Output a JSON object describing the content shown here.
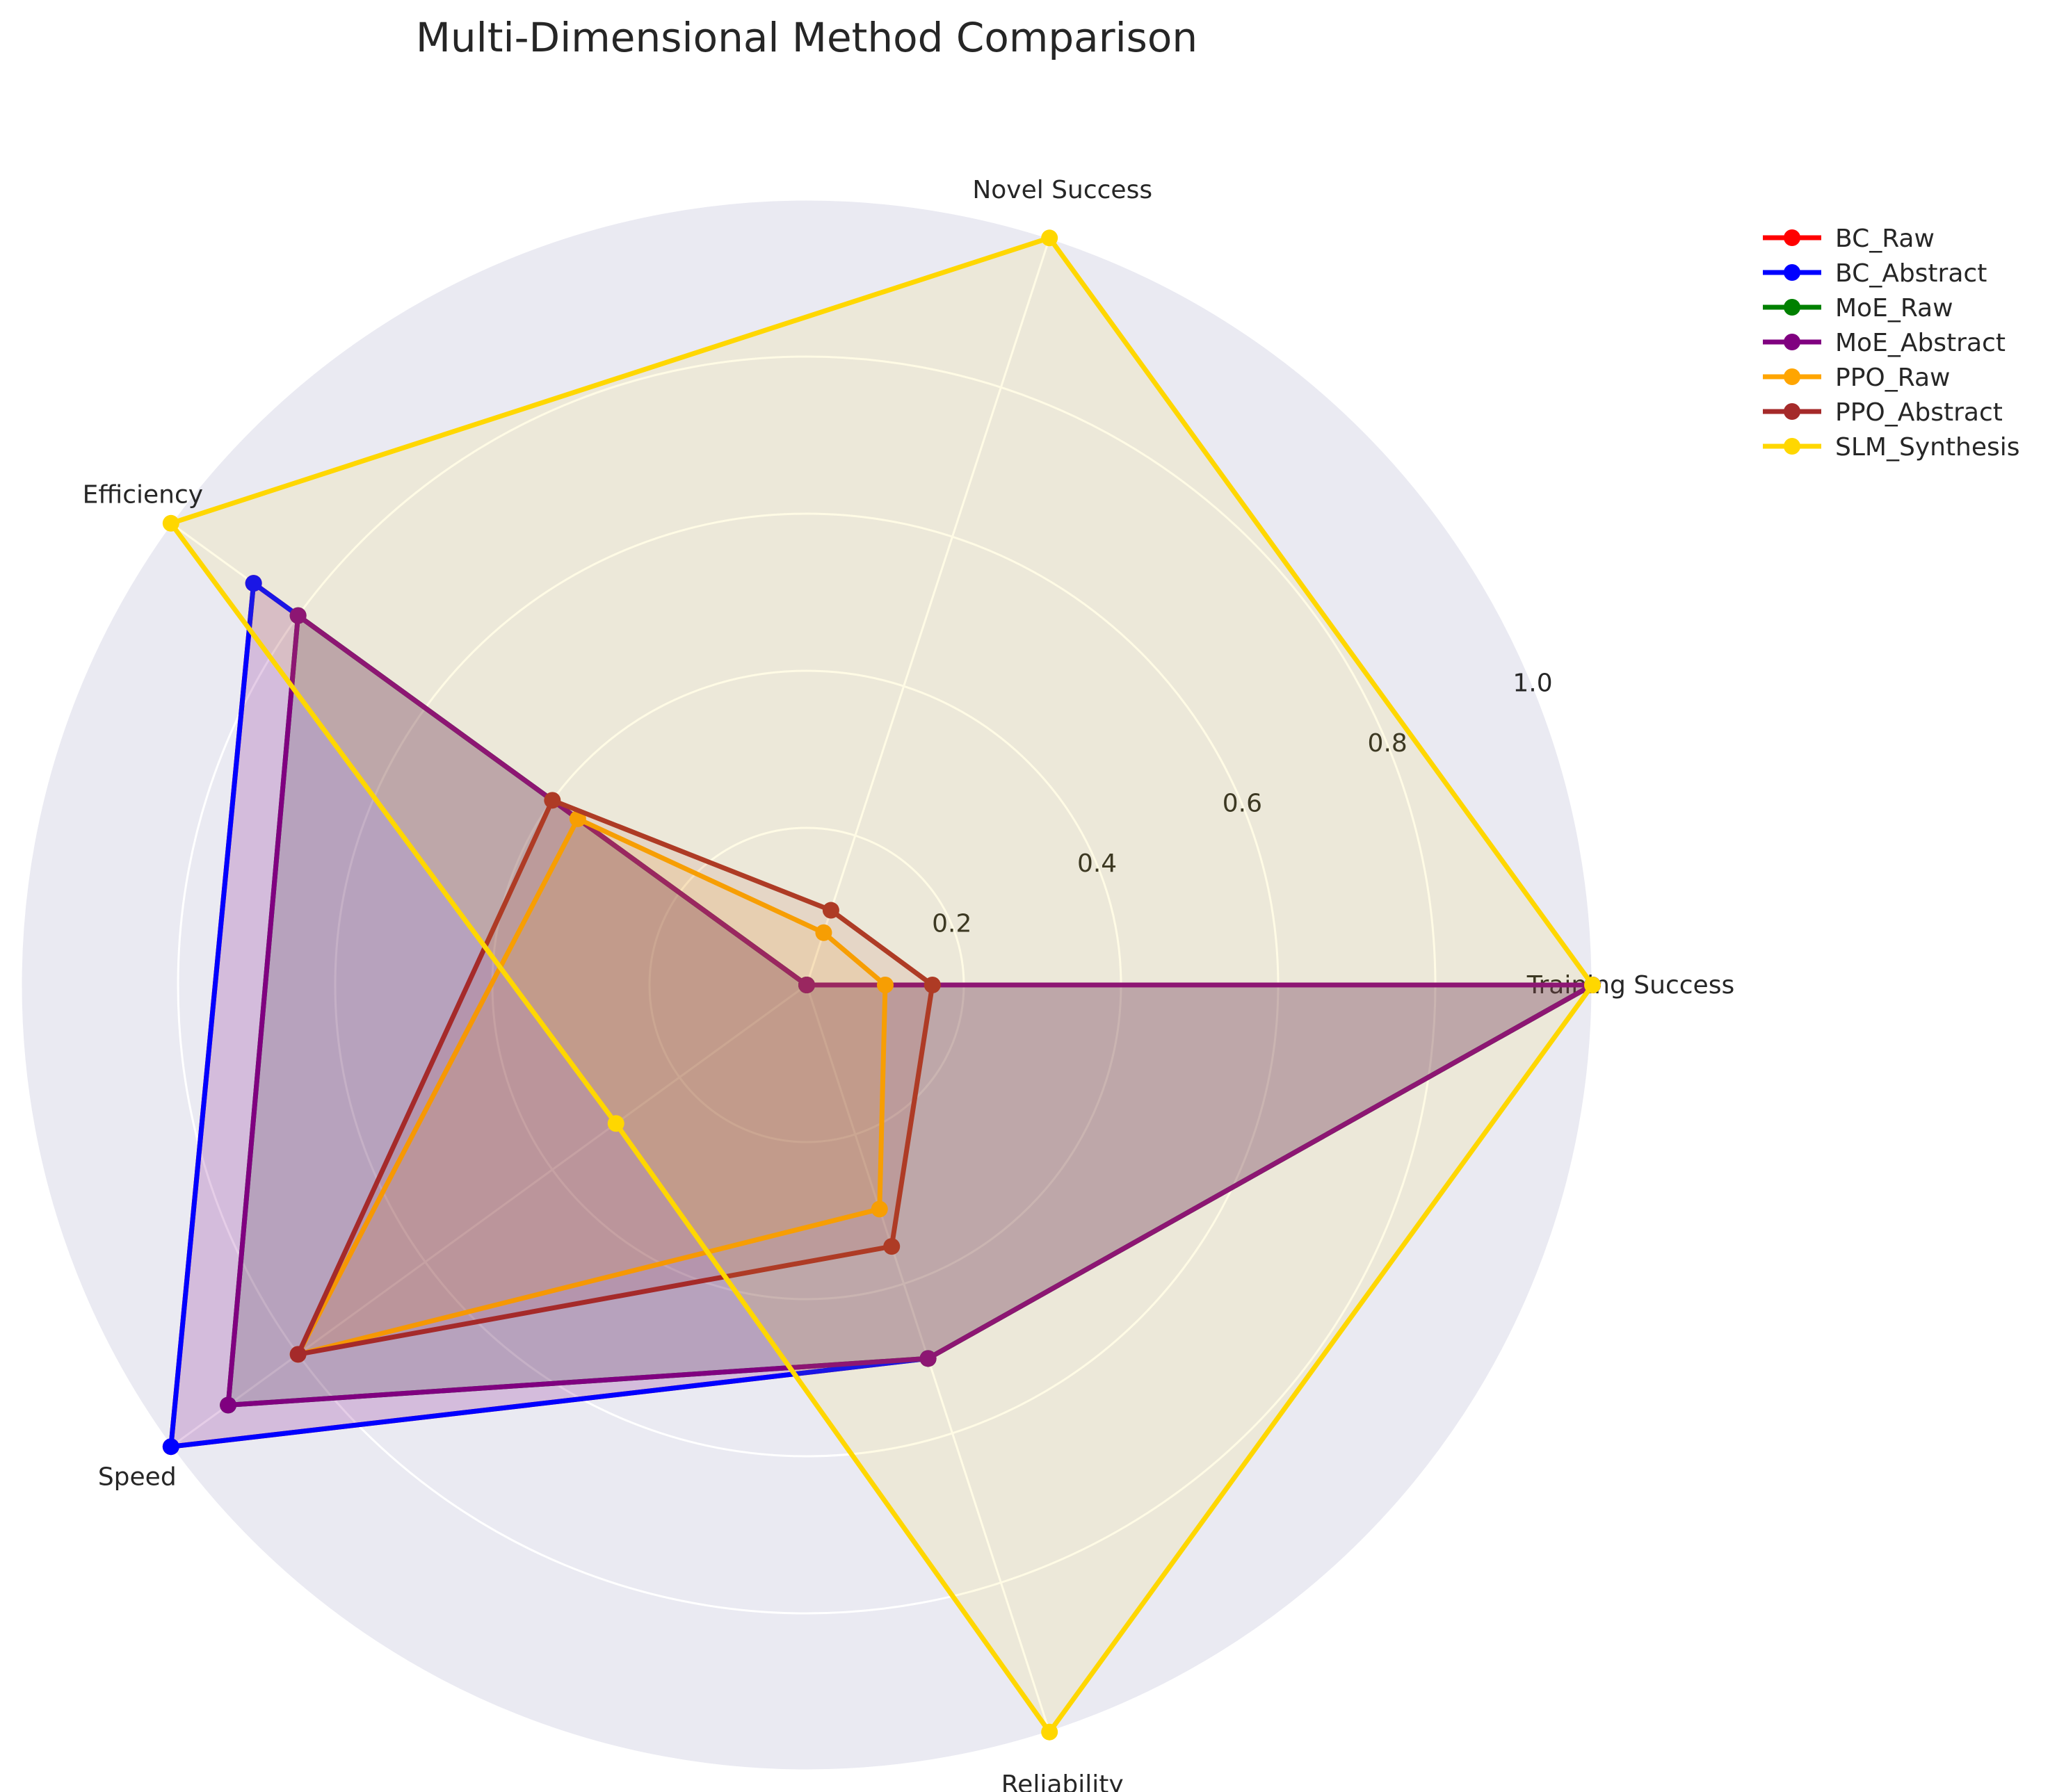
{
  "chart_data": {
    "type": "radar",
    "title": "Multi-Dimensional Method Comparison",
    "axes": [
      "Training Success",
      "Novel Success",
      "Efficiency",
      "Speed",
      "Reliability"
    ],
    "radial_ticks": [
      0.2,
      0.4,
      0.6,
      0.8,
      1.0
    ],
    "radial_tick_labels": [
      "0.2",
      "0.4",
      "0.6",
      "0.8",
      "1.0"
    ],
    "rlim": [
      0,
      1.0
    ],
    "grid": true,
    "legend_position": "upper right, outside plot",
    "series": [
      {
        "name": "BC_Raw",
        "color": "#ff0000",
        "values": [
          1.0,
          0.0,
          0.87,
          1.0,
          0.5
        ]
      },
      {
        "name": "BC_Abstract",
        "color": "#0000ff",
        "values": [
          1.0,
          0.0,
          0.87,
          1.0,
          0.5
        ]
      },
      {
        "name": "MoE_Raw",
        "color": "#008000",
        "values": [
          1.0,
          0.0,
          0.8,
          0.91,
          0.5
        ]
      },
      {
        "name": "MoE_Abstract",
        "color": "#800080",
        "values": [
          1.0,
          0.0,
          0.8,
          0.91,
          0.5
        ]
      },
      {
        "name": "PPO_Raw",
        "color": "#ffa500",
        "values": [
          0.1,
          0.07,
          0.36,
          0.8,
          0.3
        ]
      },
      {
        "name": "PPO_Abstract",
        "color": "#a52a2a",
        "values": [
          0.16,
          0.1,
          0.4,
          0.8,
          0.35
        ]
      },
      {
        "name": "SLM_Synthesis",
        "color": "#ffd700",
        "values": [
          1.0,
          1.0,
          1.0,
          0.3,
          1.0
        ]
      }
    ]
  }
}
